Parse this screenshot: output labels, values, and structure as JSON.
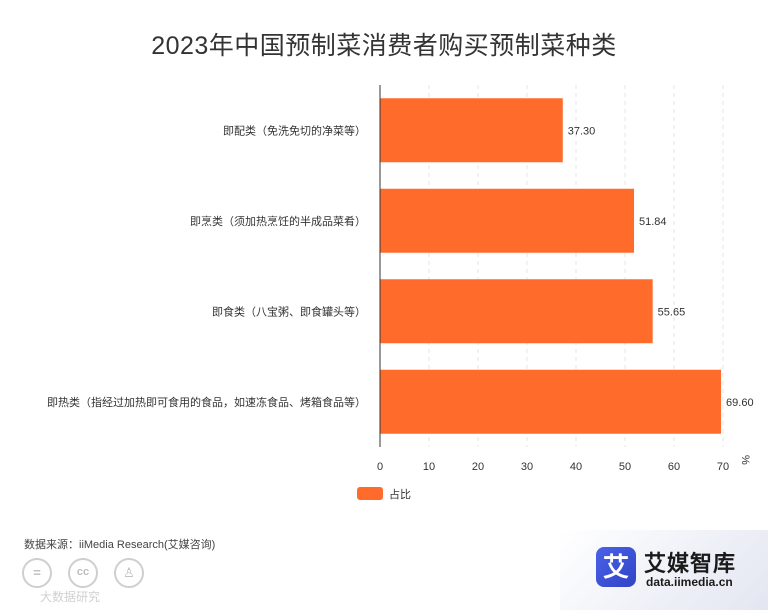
{
  "title": "2023年中国预制菜消费者购买预制菜种类",
  "source": "数据来源：iiMedia Research(艾媒咨询)",
  "watermark": "大数据研究",
  "brand": {
    "logo_char": "艾",
    "name": "艾媒智库",
    "url": "data.iimedia.cn"
  },
  "colors": {
    "bar": "#ff6b2a",
    "axis": "#333333"
  },
  "chart_data": {
    "type": "bar",
    "orientation": "horizontal",
    "title": "2023年中国预制菜消费者购买预制菜种类",
    "categories": [
      "即配类（免洗免切的净菜等）",
      "即烹类（须加热烹饪的半成品菜肴）",
      "即食类（八宝粥、即食罐头等）",
      "即热类（指经过加热即可食用的食品，如速冻食品、烤箱食品等）"
    ],
    "series": [
      {
        "name": "占比",
        "values": [
          37.3,
          51.84,
          55.65,
          69.6
        ]
      }
    ],
    "value_labels": [
      "37.30",
      "51.84",
      "55.65",
      "69.60"
    ],
    "xlabel": "",
    "ylabel": "",
    "unit": "%",
    "xlim": [
      0,
      70
    ],
    "xticks": [
      0,
      10,
      20,
      30,
      40,
      50,
      60,
      70
    ],
    "grid": true,
    "legend": "bottom-center"
  }
}
